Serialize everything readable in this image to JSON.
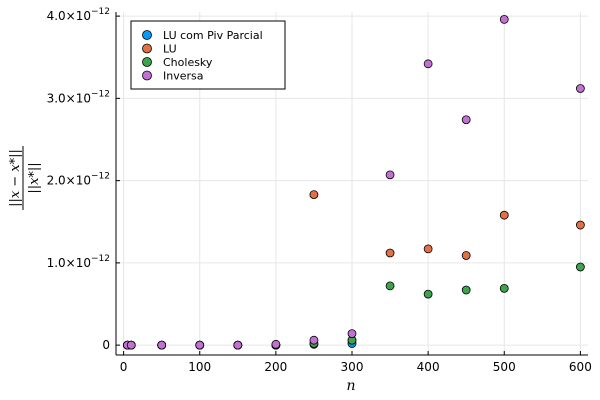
{
  "chart_data": {
    "type": "scatter",
    "xlabel": "n",
    "ylabel_top": "||x − x*||",
    "ylabel_bottom": "||x*||",
    "xlim": [
      -10,
      610
    ],
    "ylim": [
      -0.12,
      4.05
    ],
    "y_multiplier_text": "×10",
    "y_multiplier_exp": "−12",
    "x_ticks": [
      {
        "value": 0,
        "label": "0"
      },
      {
        "value": 100,
        "label": "100"
      },
      {
        "value": 200,
        "label": "200"
      },
      {
        "value": 300,
        "label": "300"
      },
      {
        "value": 400,
        "label": "400"
      },
      {
        "value": 500,
        "label": "500"
      },
      {
        "value": 600,
        "label": "600"
      }
    ],
    "y_ticks": [
      {
        "value": 0,
        "label": "0",
        "mult": false
      },
      {
        "value": 1,
        "label": "1.0",
        "mult": true
      },
      {
        "value": 2,
        "label": "2.0",
        "mult": true
      },
      {
        "value": 3,
        "label": "3.0",
        "mult": true
      },
      {
        "value": 4,
        "label": "4.0",
        "mult": true
      }
    ],
    "grid": true,
    "legend_position": "top-left",
    "series": [
      {
        "name": "LU com Piv Parcial",
        "color": "#009AFA",
        "x": [
          5,
          10,
          50,
          100,
          150,
          200,
          250,
          300
        ],
        "y": [
          0.0,
          0.0,
          0.0,
          0.0,
          0.0,
          0.0,
          0.01,
          0.02
        ]
      },
      {
        "name": "LU",
        "color": "#E26F46",
        "x": [
          5,
          10,
          50,
          100,
          150,
          200,
          250,
          300,
          350,
          400,
          450,
          500,
          600
        ],
        "y": [
          0.0,
          0.0,
          0.0,
          0.0,
          0.0,
          0.0,
          1.83,
          0.06,
          1.12,
          1.17,
          1.09,
          1.58,
          1.46
        ]
      },
      {
        "name": "Cholesky",
        "color": "#3DA44D",
        "x": [
          5,
          10,
          50,
          100,
          150,
          200,
          250,
          300,
          350,
          400,
          450,
          500,
          600
        ],
        "y": [
          0.0,
          0.0,
          0.0,
          0.0,
          0.0,
          0.0,
          0.02,
          0.06,
          0.72,
          0.62,
          0.67,
          0.69,
          0.95
        ]
      },
      {
        "name": "Inversa",
        "color": "#C271D2",
        "x": [
          5,
          10,
          50,
          100,
          150,
          200,
          250,
          300,
          350,
          400,
          450,
          500,
          600
        ],
        "y": [
          0.0,
          0.0,
          0.0,
          0.0,
          0.0,
          0.01,
          0.06,
          0.14,
          2.07,
          3.42,
          2.74,
          3.96,
          3.12
        ]
      }
    ]
  }
}
